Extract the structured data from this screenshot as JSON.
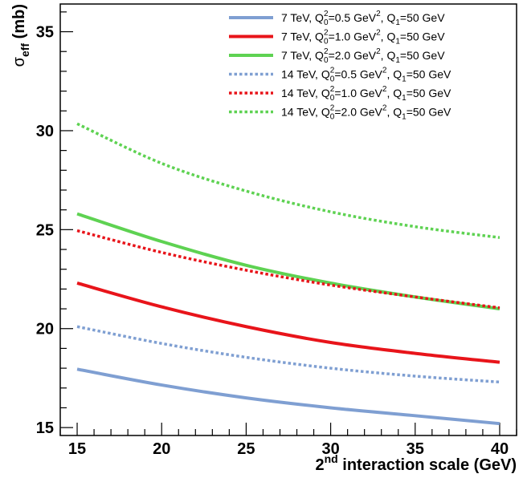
{
  "chart_data": {
    "type": "line",
    "xlabel_main": "2",
    "xlabel_sup": "nd",
    "xlabel_rest": " interaction scale (GeV)",
    "ylabel_main": "σ",
    "ylabel_sub": "eff",
    "ylabel_rest": " (mb)",
    "xlim": [
      14,
      41
    ],
    "ylim": [
      14.6,
      36.4
    ],
    "x_ticks": [
      15,
      20,
      25,
      30,
      35,
      40
    ],
    "y_ticks": [
      15,
      20,
      25,
      30,
      35
    ],
    "x": [
      15,
      20,
      25,
      30,
      35,
      40
    ],
    "series": [
      {
        "name_energy": "7 TeV",
        "name_q0val": "0.5",
        "color": "#7f9fd2",
        "style": "solid",
        "values": [
          17.95,
          17.15,
          16.5,
          16.0,
          15.6,
          15.2
        ]
      },
      {
        "name_energy": "7 TeV",
        "name_q0val": "1.0",
        "color": "#e8141a",
        "style": "solid",
        "values": [
          22.3,
          21.1,
          20.1,
          19.3,
          18.75,
          18.3
        ]
      },
      {
        "name_energy": "7 TeV",
        "name_q0val": "2.0",
        "color": "#5ed252",
        "style": "solid",
        "values": [
          25.8,
          24.4,
          23.2,
          22.3,
          21.6,
          21.0
        ]
      },
      {
        "name_energy": "14 TeV",
        "name_q0val": "0.5",
        "color": "#7f9fd2",
        "style": "dotted",
        "values": [
          20.1,
          19.25,
          18.55,
          18.0,
          17.6,
          17.3
        ]
      },
      {
        "name_energy": "14 TeV",
        "name_q0val": "1.0",
        "color": "#e8141a",
        "style": "dotted",
        "values": [
          24.95,
          23.85,
          22.95,
          22.2,
          21.6,
          21.05
        ]
      },
      {
        "name_energy": "14 TeV",
        "name_q0val": "2.0",
        "color": "#5ed252",
        "style": "dotted",
        "values": [
          30.35,
          28.35,
          26.95,
          25.9,
          25.15,
          24.6
        ]
      }
    ],
    "legend": {
      "placement": "top-right",
      "q_symbol": "Q",
      "q0_sup": "2",
      "q0_sub": "0",
      "q1_sub": "1",
      "unit_gev": "GeV",
      "unit_sup": "2",
      "q1_value": "50",
      "sep": ", "
    }
  }
}
